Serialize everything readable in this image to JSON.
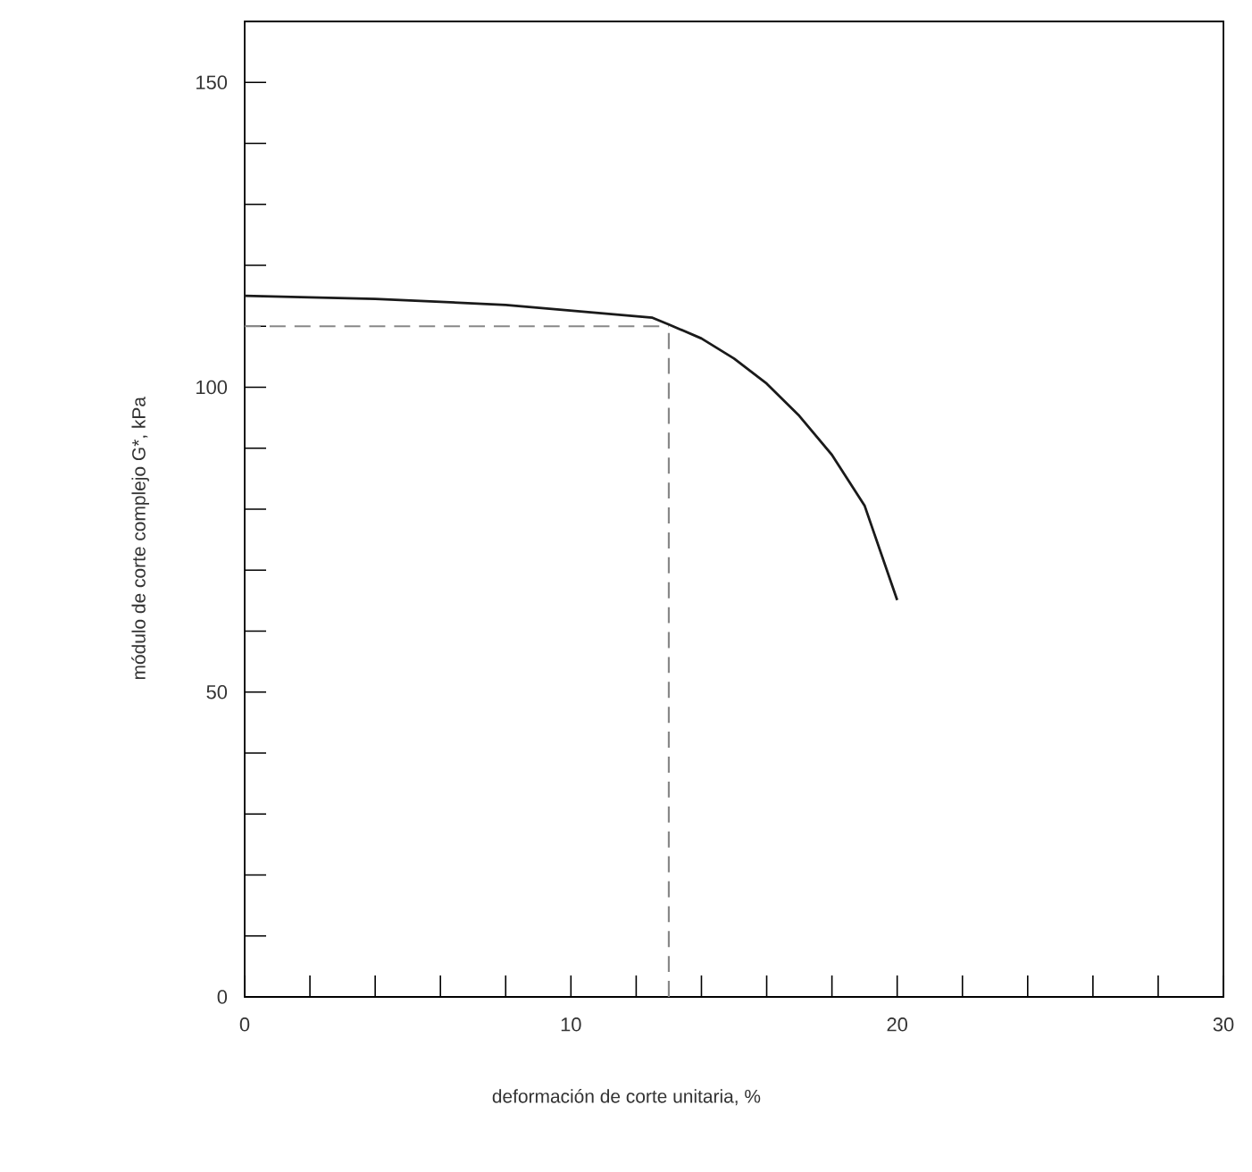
{
  "chart_data": {
    "type": "line",
    "xlabel": "deformación de corte unitaria, %",
    "ylabel": "módulo de corte complejo G*, kPa",
    "x": [
      0,
      4,
      8,
      12.5,
      13,
      14,
      15,
      16,
      17,
      18,
      19,
      20
    ],
    "series": [
      {
        "color": "#1a1a1a",
        "values": [
          115,
          114.5,
          113.5,
          111.4,
          110.3,
          108,
          104.7,
          100.6,
          95.3,
          88.9,
          80.6,
          65.1
        ]
      }
    ],
    "xlim": [
      0,
      30
    ],
    "ylim": [
      0,
      160
    ],
    "xticks": [
      0,
      {
        "value": 2,
        "label": null
      },
      {
        "value": 4,
        "label": null
      },
      {
        "value": 6,
        "label": null
      },
      {
        "value": 8,
        "label": null
      },
      10,
      {
        "value": 12,
        "label": null
      },
      {
        "value": 14,
        "label": null
      },
      {
        "value": 16,
        "label": null
      },
      {
        "value": 18,
        "label": null
      },
      20,
      {
        "value": 22,
        "label": null
      },
      {
        "value": 24,
        "label": null
      },
      {
        "value": 26,
        "label": null
      },
      {
        "value": 28,
        "label": null
      },
      30
    ],
    "yticks": [
      0,
      {
        "value": 10,
        "label": null
      },
      {
        "value": 20,
        "label": null
      },
      {
        "value": 30,
        "label": null
      },
      {
        "value": 40,
        "label": null
      },
      50,
      {
        "value": 60,
        "label": null
      },
      {
        "value": 70,
        "label": null
      },
      {
        "value": 80,
        "label": null
      },
      {
        "value": 90,
        "label": null
      },
      100,
      {
        "value": 110,
        "label": null
      },
      {
        "value": 120,
        "label": null
      },
      {
        "value": 130,
        "label": null
      },
      {
        "value": 140,
        "label": null
      },
      150
    ],
    "ref_lines": [
      {
        "axis": "x",
        "value": 13,
        "color": "#888888",
        "line_style": "dashed"
      },
      {
        "axis": "y",
        "value": 110,
        "color": "#888888",
        "line_style": "dashed"
      }
    ],
    "grid": false,
    "marker": "none",
    "line_style": "solid"
  }
}
